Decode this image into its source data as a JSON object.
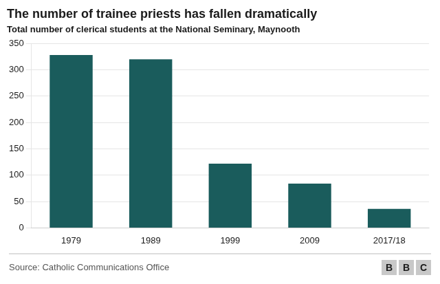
{
  "chart_data": {
    "type": "bar",
    "title": "The number of trainee priests has fallen dramatically",
    "subtitle": "Total number of clerical students at the National Seminary, Maynooth",
    "categories": [
      "1979",
      "1989",
      "1999",
      "2009",
      "2017/18"
    ],
    "values": [
      328,
      320,
      122,
      84,
      36
    ],
    "color": "#1a5c5c",
    "ylim": [
      0,
      350
    ],
    "yticks": [
      0,
      50,
      100,
      150,
      200,
      250,
      300,
      350
    ],
    "grid": true,
    "annotations": [
      "Source: Catholic Communications Office",
      "B",
      "B",
      "C"
    ]
  }
}
